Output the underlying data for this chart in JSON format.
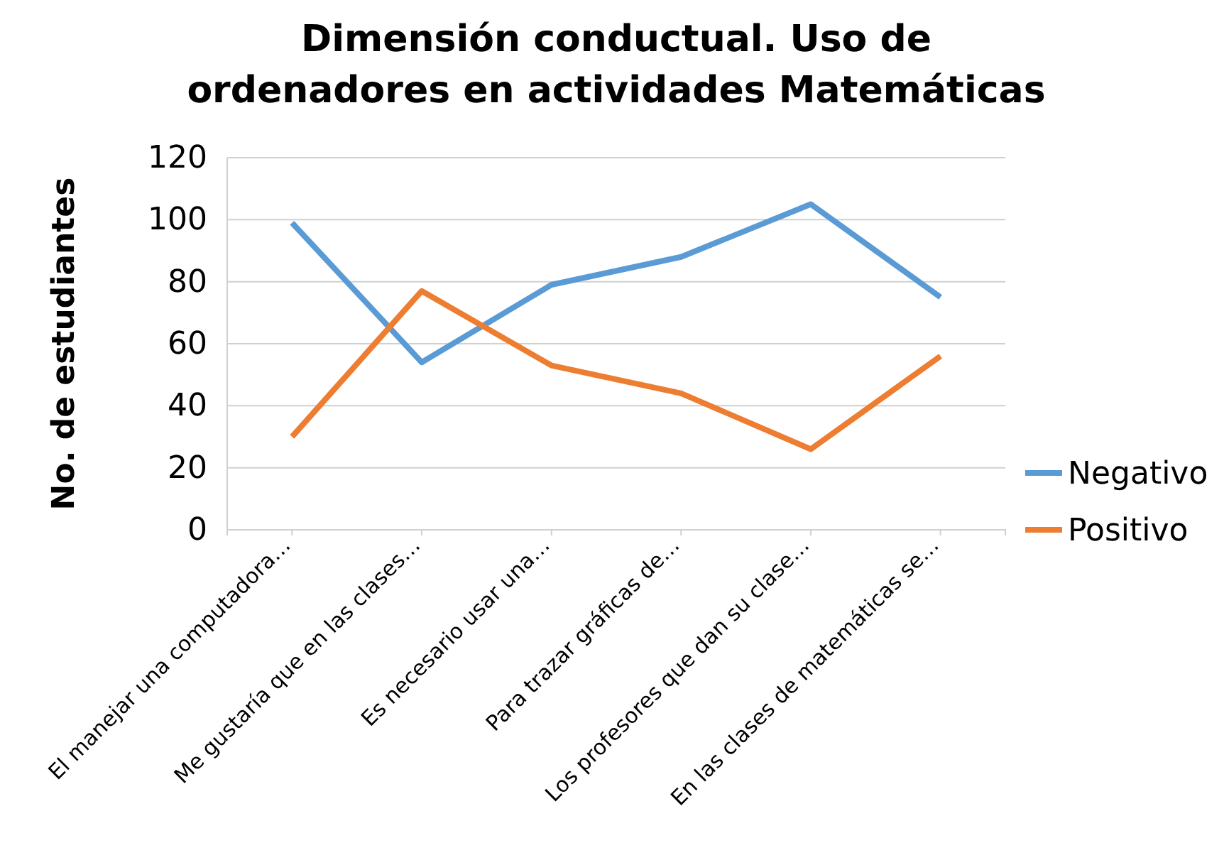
{
  "chart_data": {
    "type": "line",
    "title": "Dimensión conductual. Uso de ordenadores en actividades Matemáticas",
    "ylabel": "No. de estudiantes",
    "categories": [
      "El manejar una computadora…",
      "Me gustaría que en las clases…",
      "Es necesario usar una…",
      "Para trazar gráficas de…",
      "Los profesores que dan su clase…",
      "En las clases de matemáticas se…"
    ],
    "series": [
      {
        "name": "Negativo",
        "color": "#5b9bd5",
        "values": [
          99,
          54,
          79,
          88,
          105,
          75
        ]
      },
      {
        "name": "Positivo",
        "color": "#ed7d31",
        "values": [
          30,
          77,
          53,
          44,
          26,
          56
        ]
      }
    ],
    "ylim": [
      0,
      120
    ],
    "yticks": [
      0,
      20,
      40,
      60,
      80,
      100,
      120
    ],
    "grid": "y",
    "legend": "right",
    "marker": "none"
  }
}
